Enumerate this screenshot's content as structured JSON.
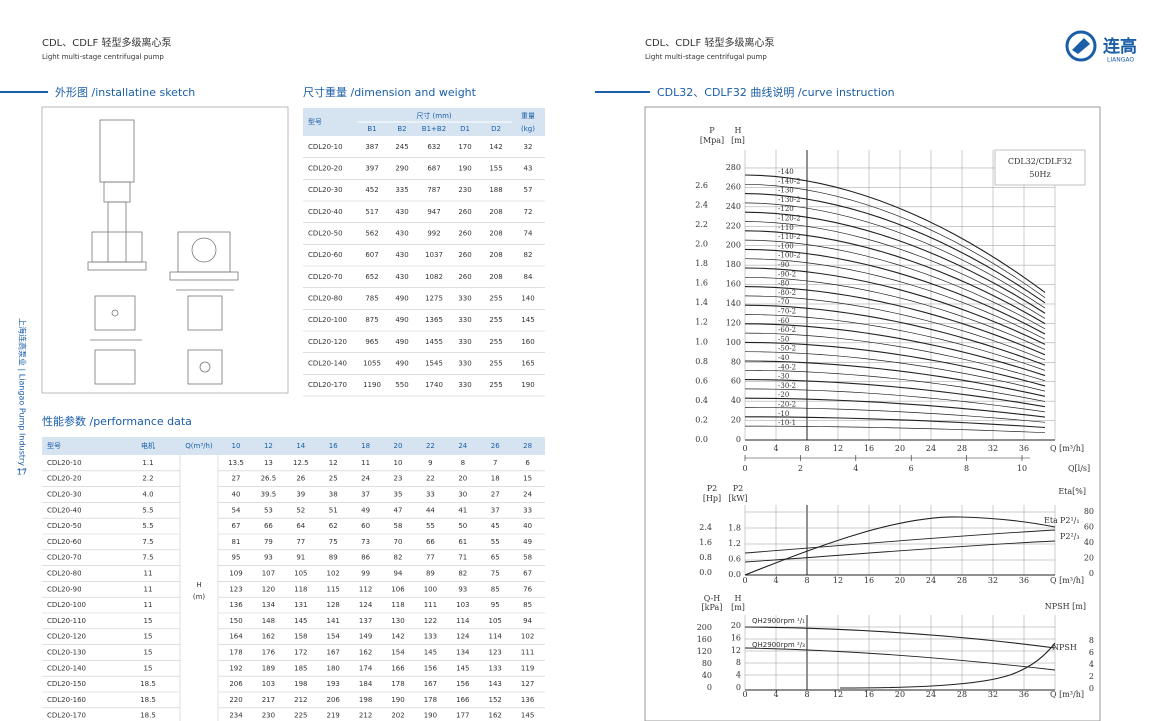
{
  "header": {
    "left_title": "CDL、CDLF 轻型多级离心泵",
    "left_subtitle": "Light multi-stage centrifugal pump",
    "right_title": "CDL、CDLF 轻型多级离心泵",
    "right_subtitle": "Light multi-stage centrifugal pump",
    "logo_cn": "连高",
    "logo_en": "LIANGAO"
  },
  "side_text": "上海连高泵业 | Liangao Pump Industry |",
  "page_number": "17",
  "sketch": {
    "title": "外形图 /installatine sketch"
  },
  "dimension_table": {
    "title": "尺寸重量 /dimension and weight",
    "headers": {
      "model": "型号",
      "size": "尺寸 (mm)",
      "weight": "重量",
      "weight_unit": "(kg)"
    },
    "columns": [
      "B1",
      "B2",
      "B1+B2",
      "D1",
      "D2"
    ],
    "rows": [
      [
        "CDL20-10",
        387,
        245,
        632,
        170,
        142,
        32
      ],
      [
        "CDL20-20",
        397,
        290,
        687,
        190,
        155,
        43
      ],
      [
        "CDL20-30",
        452,
        335,
        787,
        230,
        188,
        57
      ],
      [
        "CDL20-40",
        517,
        430,
        947,
        260,
        208,
        72
      ],
      [
        "CDL20-50",
        562,
        430,
        992,
        260,
        208,
        74
      ],
      [
        "CDL20-60",
        607,
        430,
        1037,
        260,
        208,
        82
      ],
      [
        "CDL20-70",
        652,
        430,
        1082,
        260,
        208,
        84
      ],
      [
        "CDL20-80",
        785,
        490,
        1275,
        330,
        255,
        140
      ],
      [
        "CDL20-100",
        875,
        490,
        1365,
        330,
        255,
        145
      ],
      [
        "CDL20-120",
        965,
        490,
        1455,
        330,
        255,
        160
      ],
      [
        "CDL20-140",
        1055,
        490,
        1545,
        330,
        255,
        165
      ],
      [
        "CDL20-170",
        1190,
        550,
        1740,
        330,
        255,
        190
      ]
    ]
  },
  "performance_table": {
    "title": "性能参数 /performance data",
    "headers": {
      "model": "型号",
      "motor": "电机",
      "flow": "Q(m³/h)",
      "head": "H",
      "head_unit": "(m)"
    },
    "flows": [
      10,
      12,
      14,
      16,
      18,
      20,
      22,
      24,
      26,
      28
    ],
    "rows": [
      [
        "CDL20-10",
        "1.1",
        13.5,
        13,
        12.5,
        12,
        11,
        10,
        9,
        8,
        7,
        6
      ],
      [
        "CDL20-20",
        "2.2",
        27,
        26.5,
        26,
        25,
        24,
        23,
        22,
        20,
        18,
        15
      ],
      [
        "CDL20-30",
        "4.0",
        40,
        39.5,
        39,
        38,
        37,
        35,
        33,
        30,
        27,
        24
      ],
      [
        "CDL20-40",
        "5.5",
        54,
        53,
        52,
        51,
        49,
        47,
        44,
        41,
        37,
        33
      ],
      [
        "CDL20-50",
        "5.5",
        67,
        66,
        64,
        62,
        60,
        58,
        55,
        50,
        45,
        40
      ],
      [
        "CDL20-60",
        "7.5",
        81,
        79,
        77,
        75,
        73,
        70,
        66,
        61,
        55,
        49
      ],
      [
        "CDL20-70",
        "7.5",
        95,
        93,
        91,
        89,
        86,
        82,
        77,
        71,
        65,
        58
      ],
      [
        "CDL20-80",
        "11",
        109,
        107,
        105,
        102,
        99,
        94,
        89,
        82,
        75,
        67
      ],
      [
        "CDL20-90",
        "11",
        123,
        120,
        118,
        115,
        112,
        106,
        100,
        93,
        85,
        76
      ],
      [
        "CDL20-100",
        "11",
        136,
        134,
        131,
        128,
        124,
        118,
        111,
        103,
        95,
        85
      ],
      [
        "CDL20-110",
        "15",
        150,
        148,
        145,
        141,
        137,
        130,
        122,
        114,
        105,
        94
      ],
      [
        "CDL20-120",
        "15",
        164,
        162,
        158,
        154,
        149,
        142,
        133,
        124,
        114,
        102
      ],
      [
        "CDL20-130",
        "15",
        178,
        176,
        172,
        167,
        162,
        154,
        145,
        134,
        123,
        111
      ],
      [
        "CDL20-140",
        "15",
        192,
        189,
        185,
        180,
        174,
        166,
        156,
        145,
        133,
        119
      ],
      [
        "CDL20-150",
        "18.5",
        206,
        103,
        198,
        193,
        184,
        178,
        167,
        156,
        143,
        127
      ],
      [
        "CDL20-160",
        "18.5",
        220,
        217,
        212,
        206,
        198,
        190,
        178,
        166,
        152,
        136
      ],
      [
        "CDL20-170",
        "18.5",
        234,
        230,
        225,
        219,
        212,
        202,
        190,
        177,
        162,
        145
      ]
    ]
  },
  "curves": {
    "title": "CDL32、CDLF32 曲线说明 /curve instruction",
    "panel1": {
      "p_label": "P",
      "p_unit": "[Mpa]",
      "h_label": "H",
      "h_unit": "[m]",
      "p_ticks": [
        "0.0",
        "0.2",
        "0.4",
        "0.6",
        "0.8",
        "1.0",
        "1.2",
        "1.4",
        "1.6",
        "1.8",
        "2.0",
        "2.2",
        "2.4",
        "2.6"
      ],
      "h_ticks": [
        0,
        20,
        40,
        60,
        80,
        100,
        120,
        140,
        160,
        180,
        200,
        220,
        240,
        260,
        280
      ],
      "x_ticks": [
        0,
        4,
        8,
        12,
        16,
        20,
        24,
        28,
        32,
        36
      ],
      "x_label": "Q [m³/h]",
      "ls_ticks": [
        0,
        2,
        4,
        6,
        8,
        10
      ],
      "ls_label": "Q[l/s]",
      "model": "CDL32/CDLF32",
      "freq": "50Hz",
      "curve_labels": [
        "-140",
        "-140-2",
        "-130",
        "-130-2",
        "-120",
        "-120-2",
        "-110",
        "-110-2",
        "-100",
        "-100-2",
        "-90",
        "-90-2",
        "-80",
        "-80-2",
        "-70",
        "-70-2",
        "-60",
        "-60-2",
        "-50",
        "-50-2",
        "-40",
        "-40-2",
        "-30",
        "-30-2",
        "-20",
        "-20-2",
        "-10",
        "-10-1"
      ]
    },
    "panel2": {
      "hp_label": "P2",
      "hp_unit": "[Hp]",
      "kw_label": "P2",
      "kw_unit": "[kW]",
      "eta_label": "Eta[%]",
      "hp_ticks": [
        "0.0",
        "0.8",
        "1.6",
        "2.4"
      ],
      "kw_ticks": [
        "0.0",
        "0.6",
        "1.2",
        "1.8"
      ],
      "eta_ticks": [
        0,
        20,
        40,
        60,
        80
      ],
      "x_ticks": [
        0,
        4,
        8,
        12,
        16,
        20,
        24,
        28,
        32,
        36
      ],
      "x_label": "Q [m³/h]",
      "eta_curve": "Eta",
      "p2_full": "P2¹/₁",
      "p2_part": "P2²/₃"
    },
    "panel3": {
      "kpa_label": "Q-H",
      "kpa_unit": "[kPa]",
      "h_label": "H",
      "h_unit": "[m]",
      "npsh_label": "NPSH [m]",
      "kpa_ticks": [
        0,
        40,
        80,
        120,
        160,
        200
      ],
      "h_ticks": [
        0,
        4,
        8,
        12,
        16,
        20
      ],
      "npsh_ticks": [
        0,
        2,
        4,
        6,
        8
      ],
      "x_ticks": [
        0,
        4,
        8,
        12,
        16,
        20,
        24,
        28,
        32,
        36
      ],
      "x_label": "Q [m³/h]",
      "qh_full": "QH2900rpm ¹/₁",
      "qh_part": "QH2900rpm ²/₃",
      "npsh_curve": "NPSH"
    }
  }
}
